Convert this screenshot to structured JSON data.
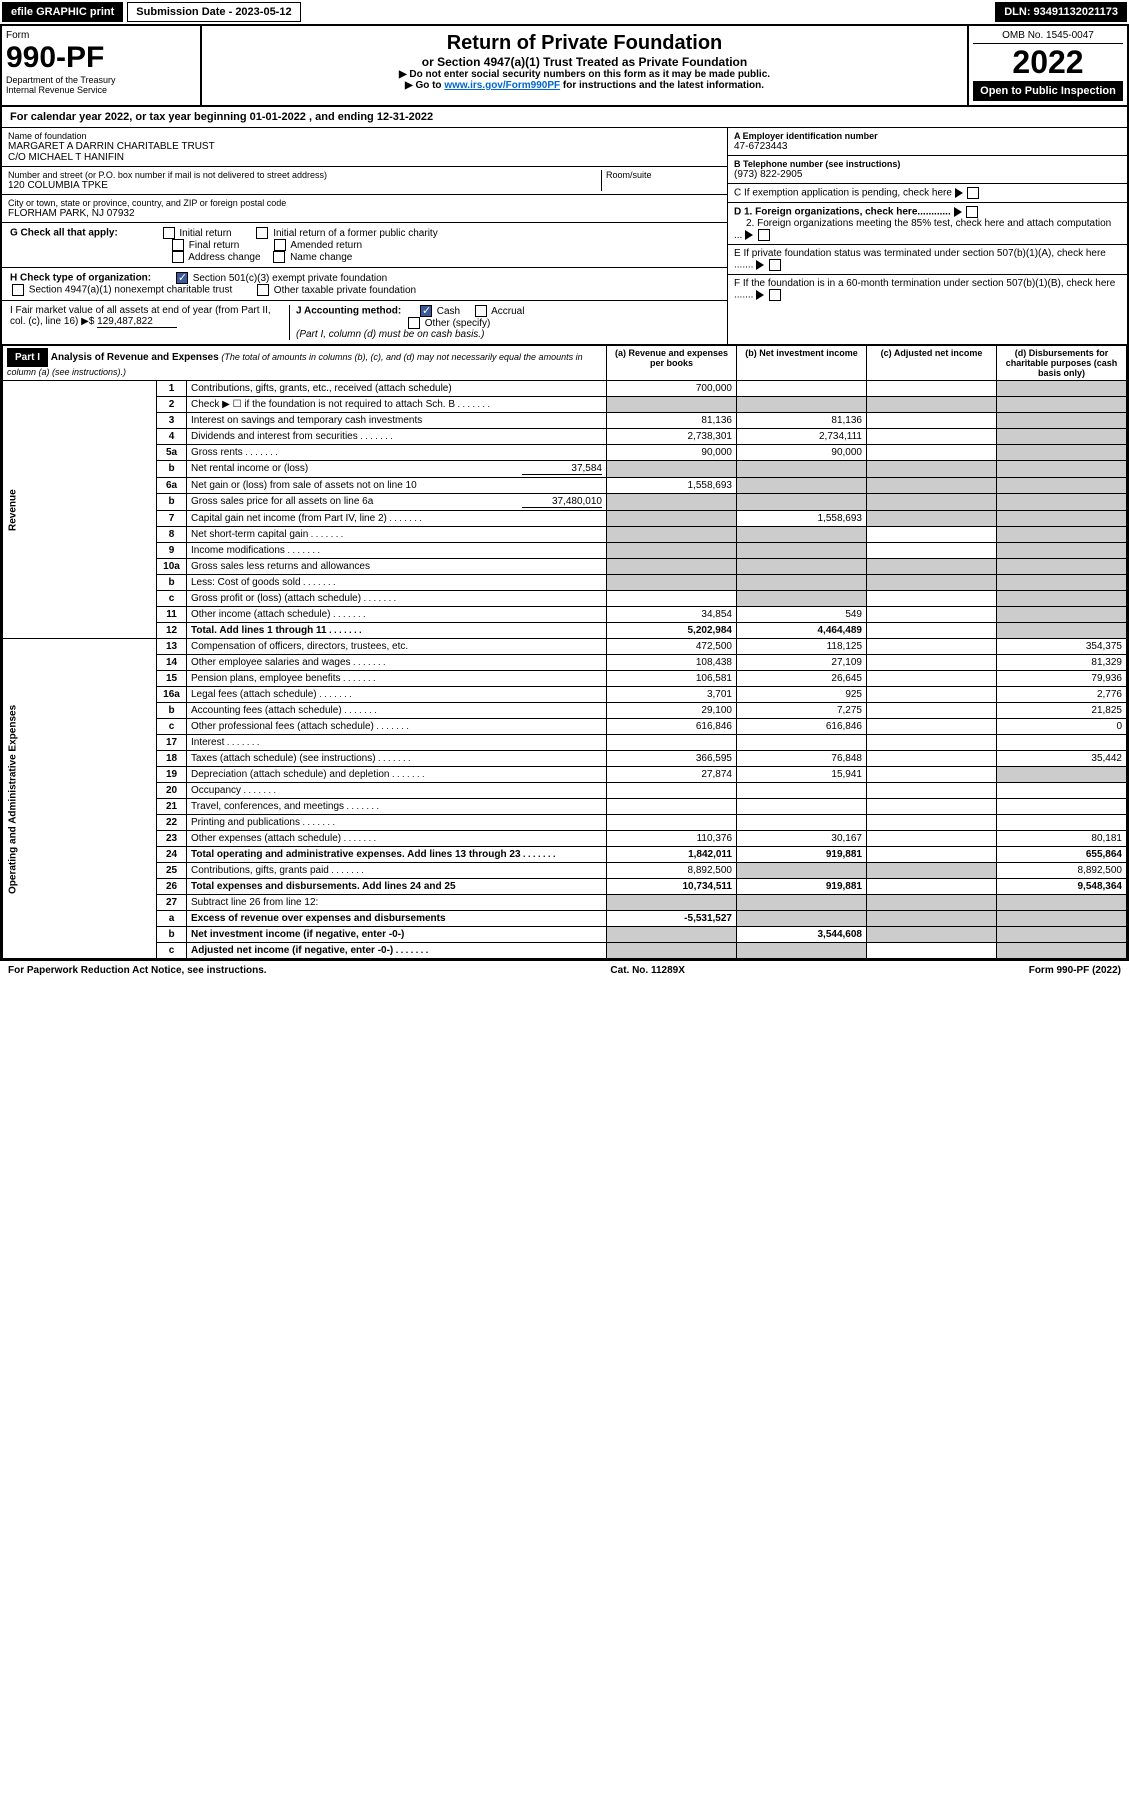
{
  "topbar": {
    "efile": "efile GRAPHIC print",
    "submission": "Submission Date - 2023-05-12",
    "dln": "DLN: 93491132021173"
  },
  "header": {
    "form_label": "Form",
    "form_number": "990-PF",
    "dept": "Department of the Treasury",
    "irs": "Internal Revenue Service",
    "title": "Return of Private Foundation",
    "subtitle": "or Section 4947(a)(1) Trust Treated as Private Foundation",
    "instr1": "▶ Do not enter social security numbers on this form as it may be made public.",
    "instr2_pre": "▶ Go to ",
    "instr2_link": "www.irs.gov/Form990PF",
    "instr2_post": " for instructions and the latest information.",
    "omb": "OMB No. 1545-0047",
    "year": "2022",
    "open": "Open to Public Inspection"
  },
  "calyear": {
    "text_pre": "For calendar year 2022, or tax year beginning ",
    "begin": "01-01-2022",
    "text_mid": " , and ending ",
    "end": "12-31-2022"
  },
  "name": {
    "label": "Name of foundation",
    "line1": "MARGARET A DARRIN CHARITABLE TRUST",
    "line2": "C/O MICHAEL T HANIFIN"
  },
  "address": {
    "label": "Number and street (or P.O. box number if mail is not delivered to street address)",
    "value": "120 COLUMBIA TPKE",
    "room_label": "Room/suite"
  },
  "city": {
    "label": "City or town, state or province, country, and ZIP or foreign postal code",
    "value": "FLORHAM PARK, NJ  07932"
  },
  "ein": {
    "label": "A Employer identification number",
    "value": "47-6723443"
  },
  "phone": {
    "label": "B Telephone number (see instructions)",
    "value": "(973) 822-2905"
  },
  "boxC": "C If exemption application is pending, check here",
  "boxD1": "D 1. Foreign organizations, check here............",
  "boxD2": "2. Foreign organizations meeting the 85% test, check here and attach computation ...",
  "boxE": "E  If private foundation status was terminated under section 507(b)(1)(A), check here .......",
  "boxF": "F  If the foundation is in a 60-month termination under section 507(b)(1)(B), check here .......",
  "checkG": {
    "label": "G Check all that apply:",
    "opts": [
      "Initial return",
      "Initial return of a former public charity",
      "Final return",
      "Amended return",
      "Address change",
      "Name change"
    ]
  },
  "checkH": {
    "label": "H Check type of organization:",
    "opt1": "Section 501(c)(3) exempt private foundation",
    "opt2": "Section 4947(a)(1) nonexempt charitable trust",
    "opt3": "Other taxable private foundation"
  },
  "boxI": {
    "label": "I Fair market value of all assets at end of year (from Part II, col. (c), line 16) ▶$",
    "value": "129,487,822"
  },
  "boxJ": {
    "label": "J Accounting method:",
    "cash": "Cash",
    "accrual": "Accrual",
    "other": "Other (specify)",
    "note": "(Part I, column (d) must be on cash basis.)"
  },
  "part1": {
    "header": "Part I",
    "title": "Analysis of Revenue and Expenses",
    "note": "(The total of amounts in columns (b), (c), and (d) may not necessarily equal the amounts in column (a) (see instructions).)",
    "col_a": "(a) Revenue and expenses per books",
    "col_b": "(b) Net investment income",
    "col_c": "(c) Adjusted net income",
    "col_d": "(d) Disbursements for charitable purposes (cash basis only)"
  },
  "sections": {
    "revenue": "Revenue",
    "expenses": "Operating and Administrative Expenses"
  },
  "rows": [
    {
      "n": "1",
      "desc": "Contributions, gifts, grants, etc., received (attach schedule)",
      "a": "700,000",
      "b": "",
      "c": "",
      "d": "",
      "shaded": [
        "d"
      ]
    },
    {
      "n": "2",
      "desc": "Check ▶ ☐ if the foundation is not required to attach Sch. B",
      "a": "",
      "b": "",
      "c": "",
      "d": "",
      "shaded": [
        "a",
        "b",
        "c",
        "d"
      ],
      "dotted": true
    },
    {
      "n": "3",
      "desc": "Interest on savings and temporary cash investments",
      "a": "81,136",
      "b": "81,136",
      "c": "",
      "d": "",
      "shaded": [
        "d"
      ]
    },
    {
      "n": "4",
      "desc": "Dividends and interest from securities",
      "a": "2,738,301",
      "b": "2,734,111",
      "c": "",
      "d": "",
      "shaded": [
        "d"
      ],
      "dotted": true
    },
    {
      "n": "5a",
      "desc": "Gross rents",
      "a": "90,000",
      "b": "90,000",
      "c": "",
      "d": "",
      "shaded": [
        "d"
      ],
      "dotted": true
    },
    {
      "n": "b",
      "desc": "Net rental income or (loss)",
      "inline": "37,584",
      "a": "",
      "b": "",
      "c": "",
      "d": "",
      "shaded": [
        "a",
        "b",
        "c",
        "d"
      ]
    },
    {
      "n": "6a",
      "desc": "Net gain or (loss) from sale of assets not on line 10",
      "a": "1,558,693",
      "b": "",
      "c": "",
      "d": "",
      "shaded": [
        "b",
        "c",
        "d"
      ]
    },
    {
      "n": "b",
      "desc": "Gross sales price for all assets on line 6a",
      "inline": "37,480,010",
      "a": "",
      "b": "",
      "c": "",
      "d": "",
      "shaded": [
        "a",
        "b",
        "c",
        "d"
      ]
    },
    {
      "n": "7",
      "desc": "Capital gain net income (from Part IV, line 2)",
      "a": "",
      "b": "1,558,693",
      "c": "",
      "d": "",
      "shaded": [
        "a",
        "c",
        "d"
      ],
      "dotted": true
    },
    {
      "n": "8",
      "desc": "Net short-term capital gain",
      "a": "",
      "b": "",
      "c": "",
      "d": "",
      "shaded": [
        "a",
        "b",
        "d"
      ],
      "dotted": true
    },
    {
      "n": "9",
      "desc": "Income modifications",
      "a": "",
      "b": "",
      "c": "",
      "d": "",
      "shaded": [
        "a",
        "b",
        "d"
      ],
      "dotted": true
    },
    {
      "n": "10a",
      "desc": "Gross sales less returns and allowances",
      "a": "",
      "b": "",
      "c": "",
      "d": "",
      "shaded": [
        "a",
        "b",
        "c",
        "d"
      ]
    },
    {
      "n": "b",
      "desc": "Less: Cost of goods sold",
      "a": "",
      "b": "",
      "c": "",
      "d": "",
      "shaded": [
        "a",
        "b",
        "c",
        "d"
      ],
      "dotted": true
    },
    {
      "n": "c",
      "desc": "Gross profit or (loss) (attach schedule)",
      "a": "",
      "b": "",
      "c": "",
      "d": "",
      "shaded": [
        "b",
        "d"
      ],
      "dotted": true
    },
    {
      "n": "11",
      "desc": "Other income (attach schedule)",
      "a": "34,854",
      "b": "549",
      "c": "",
      "d": "",
      "shaded": [
        "d"
      ],
      "dotted": true
    },
    {
      "n": "12",
      "desc": "Total. Add lines 1 through 11",
      "a": "5,202,984",
      "b": "4,464,489",
      "c": "",
      "d": "",
      "shaded": [
        "d"
      ],
      "bold": true,
      "dotted": true
    }
  ],
  "exp_rows": [
    {
      "n": "13",
      "desc": "Compensation of officers, directors, trustees, etc.",
      "a": "472,500",
      "b": "118,125",
      "c": "",
      "d": "354,375"
    },
    {
      "n": "14",
      "desc": "Other employee salaries and wages",
      "a": "108,438",
      "b": "27,109",
      "c": "",
      "d": "81,329",
      "dotted": true
    },
    {
      "n": "15",
      "desc": "Pension plans, employee benefits",
      "a": "106,581",
      "b": "26,645",
      "c": "",
      "d": "79,936",
      "dotted": true
    },
    {
      "n": "16a",
      "desc": "Legal fees (attach schedule)",
      "a": "3,701",
      "b": "925",
      "c": "",
      "d": "2,776",
      "dotted": true
    },
    {
      "n": "b",
      "desc": "Accounting fees (attach schedule)",
      "a": "29,100",
      "b": "7,275",
      "c": "",
      "d": "21,825",
      "dotted": true
    },
    {
      "n": "c",
      "desc": "Other professional fees (attach schedule)",
      "a": "616,846",
      "b": "616,846",
      "c": "",
      "d": "0",
      "dotted": true
    },
    {
      "n": "17",
      "desc": "Interest",
      "a": "",
      "b": "",
      "c": "",
      "d": "",
      "dotted": true
    },
    {
      "n": "18",
      "desc": "Taxes (attach schedule) (see instructions)",
      "a": "366,595",
      "b": "76,848",
      "c": "",
      "d": "35,442",
      "dotted": true
    },
    {
      "n": "19",
      "desc": "Depreciation (attach schedule) and depletion",
      "a": "27,874",
      "b": "15,941",
      "c": "",
      "d": "",
      "shaded": [
        "d"
      ],
      "dotted": true
    },
    {
      "n": "20",
      "desc": "Occupancy",
      "a": "",
      "b": "",
      "c": "",
      "d": "",
      "dotted": true
    },
    {
      "n": "21",
      "desc": "Travel, conferences, and meetings",
      "a": "",
      "b": "",
      "c": "",
      "d": "",
      "dotted": true
    },
    {
      "n": "22",
      "desc": "Printing and publications",
      "a": "",
      "b": "",
      "c": "",
      "d": "",
      "dotted": true
    },
    {
      "n": "23",
      "desc": "Other expenses (attach schedule)",
      "a": "110,376",
      "b": "30,167",
      "c": "",
      "d": "80,181",
      "dotted": true
    },
    {
      "n": "24",
      "desc": "Total operating and administrative expenses. Add lines 13 through 23",
      "a": "1,842,011",
      "b": "919,881",
      "c": "",
      "d": "655,864",
      "bold": true,
      "dotted": true
    },
    {
      "n": "25",
      "desc": "Contributions, gifts, grants paid",
      "a": "8,892,500",
      "b": "",
      "c": "",
      "d": "8,892,500",
      "shaded": [
        "b",
        "c"
      ],
      "dotted": true
    },
    {
      "n": "26",
      "desc": "Total expenses and disbursements. Add lines 24 and 25",
      "a": "10,734,511",
      "b": "919,881",
      "c": "",
      "d": "9,548,364",
      "bold": true
    },
    {
      "n": "27",
      "desc": "Subtract line 26 from line 12:",
      "a": "",
      "b": "",
      "c": "",
      "d": "",
      "shaded": [
        "a",
        "b",
        "c",
        "d"
      ]
    },
    {
      "n": "a",
      "desc": "Excess of revenue over expenses and disbursements",
      "a": "-5,531,527",
      "b": "",
      "c": "",
      "d": "",
      "shaded": [
        "b",
        "c",
        "d"
      ],
      "bold": true
    },
    {
      "n": "b",
      "desc": "Net investment income (if negative, enter -0-)",
      "a": "",
      "b": "3,544,608",
      "c": "",
      "d": "",
      "shaded": [
        "a",
        "c",
        "d"
      ],
      "bold": true
    },
    {
      "n": "c",
      "desc": "Adjusted net income (if negative, enter -0-)",
      "a": "",
      "b": "",
      "c": "",
      "d": "",
      "shaded": [
        "a",
        "b",
        "d"
      ],
      "bold": true,
      "dotted": true
    }
  ],
  "footer": {
    "left": "For Paperwork Reduction Act Notice, see instructions.",
    "mid": "Cat. No. 11289X",
    "right": "Form 990-PF (2022)"
  }
}
